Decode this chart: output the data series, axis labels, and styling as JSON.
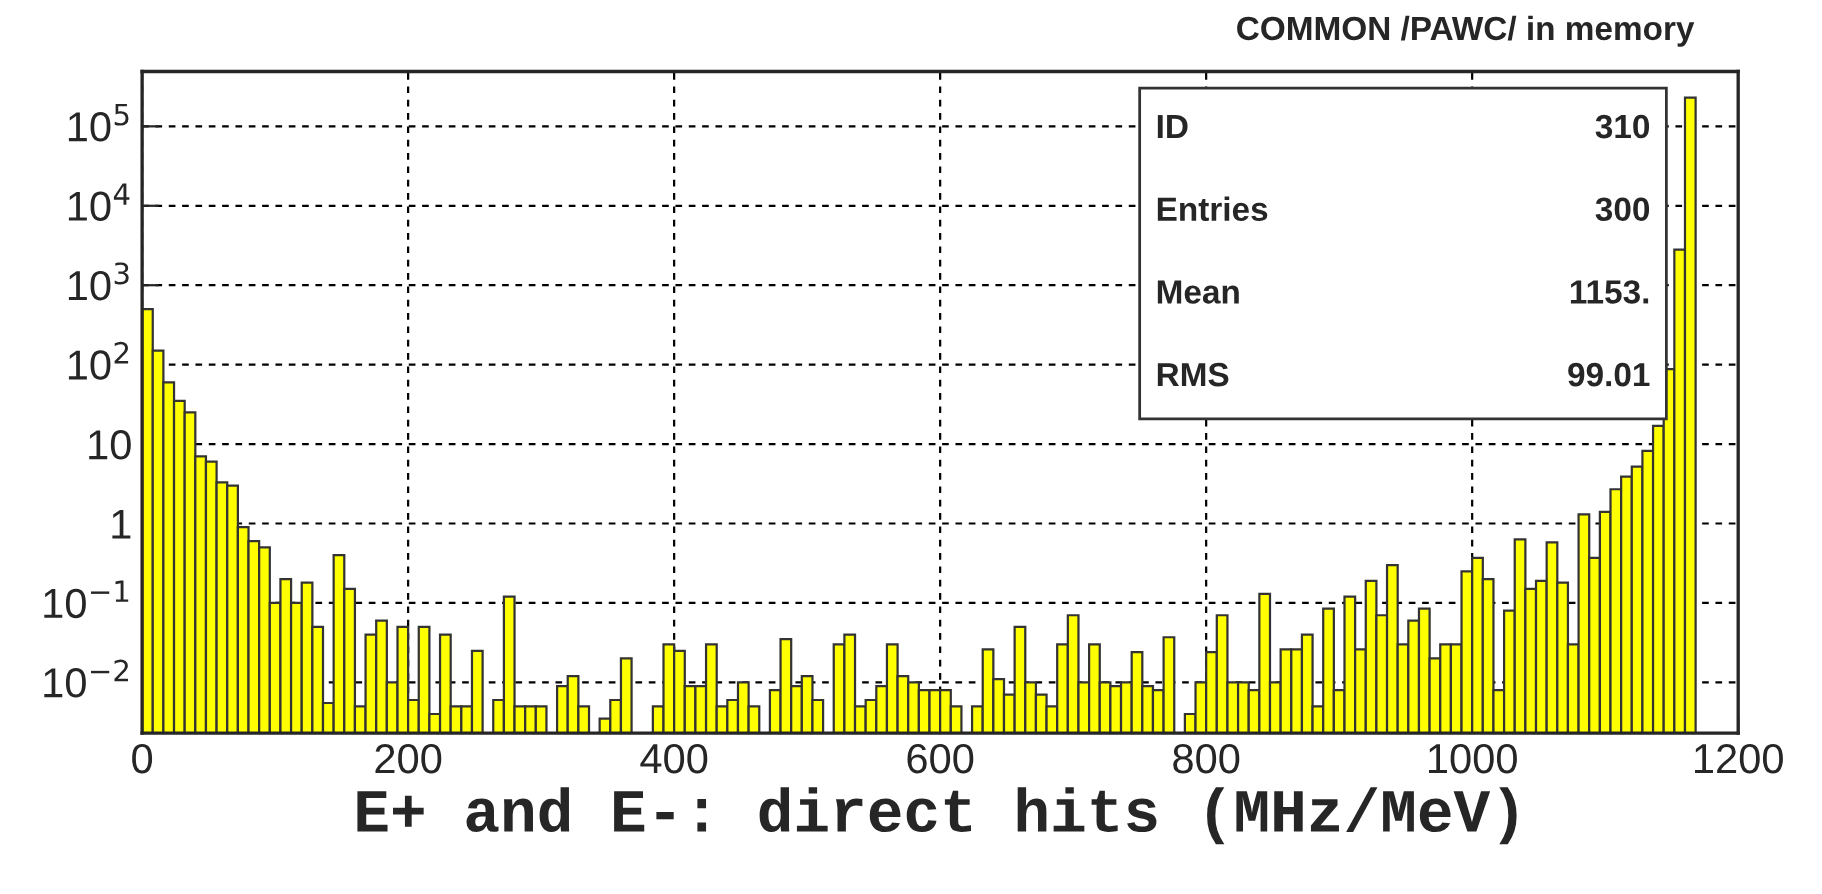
{
  "chart_data": {
    "type": "histogram",
    "title": "COMMON /PAWC/ in memory",
    "xlabel": "E+ and E-: direct hits (MHz/MeV)",
    "bins": [
      0,
      8,
      16,
      24,
      32,
      40,
      48,
      56,
      64,
      72,
      80,
      88,
      96,
      104,
      112,
      120,
      128,
      136,
      144,
      152,
      160,
      168,
      176,
      184,
      192,
      200,
      208,
      216,
      224,
      232,
      240,
      248,
      256,
      264,
      272,
      280,
      288,
      296,
      304,
      312,
      320,
      328,
      336,
      344,
      352,
      360,
      368,
      376,
      384,
      392,
      400,
      408,
      416,
      424,
      432,
      440,
      448,
      456,
      464,
      472,
      480,
      488,
      496,
      504,
      512,
      520,
      528,
      536,
      544,
      552,
      560,
      568,
      576,
      584,
      592,
      600,
      608,
      616,
      624,
      632,
      640,
      648,
      656,
      664,
      672,
      680,
      688,
      696,
      704,
      712,
      720,
      728,
      736,
      744,
      752,
      760,
      768,
      776,
      784,
      792,
      800,
      808,
      816,
      824,
      832,
      840,
      848,
      856,
      864,
      872,
      880,
      888,
      896,
      904,
      912,
      920,
      928,
      936,
      944,
      952,
      960,
      968,
      976,
      984,
      992,
      1000,
      1008,
      1016,
      1024,
      1032,
      1040,
      1048,
      1056,
      1064,
      1072,
      1080,
      1088,
      1096,
      1104,
      1112,
      1120,
      1128,
      1136,
      1144,
      1152,
      1160,
      1168
    ],
    "values": [
      500,
      150,
      60,
      35,
      25,
      7,
      6,
      3.3,
      3,
      0.9,
      0.6,
      0.5,
      0.1,
      0.2,
      0.1,
      0.18,
      0.05,
      0.0055,
      0.4,
      0.15,
      0.005,
      0.04,
      0.06,
      0.01,
      0.05,
      0.006,
      0.05,
      0.004,
      0.04,
      0.005,
      0.005,
      0.025,
      null,
      0.006,
      0.12,
      0.005,
      0.005,
      0.005,
      null,
      0.009,
      0.012,
      0.005,
      null,
      0.0035,
      0.006,
      0.02,
      null,
      null,
      0.005,
      0.03,
      0.025,
      0.009,
      0.009,
      0.03,
      0.005,
      0.006,
      0.01,
      0.005,
      null,
      0.008,
      0.035,
      0.009,
      0.012,
      0.006,
      null,
      0.03,
      0.04,
      0.005,
      0.006,
      0.009,
      0.03,
      0.012,
      0.01,
      0.008,
      0.008,
      0.008,
      0.005,
      null,
      0.005,
      0.026,
      0.011,
      0.007,
      0.05,
      0.01,
      0.007,
      0.005,
      0.03,
      0.07,
      0.01,
      0.03,
      0.01,
      0.009,
      0.01,
      0.024,
      0.009,
      0.008,
      0.037,
      null,
      0.004,
      0.01,
      0.024,
      0.07,
      0.01,
      0.01,
      0.008,
      0.13,
      0.01,
      0.026,
      0.026,
      0.04,
      0.005,
      0.085,
      0.008,
      0.12,
      0.026,
      0.19,
      0.07,
      0.3,
      0.03,
      0.06,
      0.085,
      0.02,
      0.03,
      0.03,
      0.25,
      0.37,
      0.2,
      0.008,
      0.08,
      0.63,
      0.15,
      0.19,
      0.58,
      0.18,
      0.03,
      1.3,
      0.37,
      1.4,
      2.7,
      3.9,
      5.2,
      8.2,
      17,
      88,
      2800,
      230000
    ],
    "color": "#ffff00",
    "log": "y",
    "grid": true,
    "xlim": [
      0,
      1200
    ],
    "xticks": [
      0,
      200,
      400,
      600,
      800,
      1000,
      1200
    ],
    "ylim": [
      0.0023,
      490000
    ],
    "yticks": [
      {
        "value": 0.01,
        "label": "10$^{−2}$"
      },
      {
        "value": 0.1,
        "label": "10$^{−1}$"
      },
      {
        "value": 1,
        "label": "1"
      },
      {
        "value": 10,
        "label": "10"
      },
      {
        "value": 100,
        "label": "10$^{2}$"
      },
      {
        "value": 1000,
        "label": "10$^{3}$"
      },
      {
        "value": 10000,
        "label": "10$^{4}$"
      },
      {
        "value": 100000,
        "label": "10$^{5}$"
      }
    ],
    "annotations": [
      "ID",
      "310",
      "Entries",
      "300",
      "Mean",
      "1153.",
      "RMS",
      "99.01"
    ]
  }
}
